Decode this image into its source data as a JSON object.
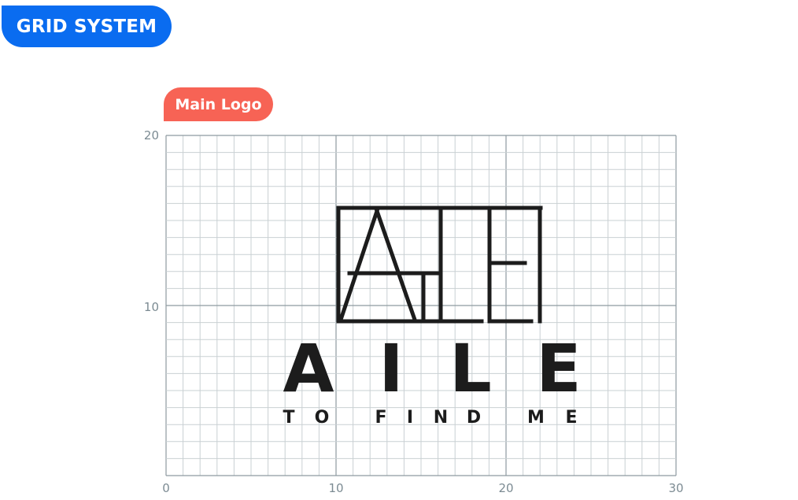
{
  "header": {
    "title": "GRID SYSTEM"
  },
  "section": {
    "label": "Main Logo"
  },
  "grid": {
    "x_ticks": [
      "0",
      "10",
      "20",
      "30"
    ],
    "y_ticks": [
      "20",
      "10"
    ]
  },
  "logo": {
    "wordmark_letters": [
      "A",
      "I",
      "L",
      "E"
    ],
    "tagline_letters": [
      "T",
      "O",
      "F",
      "I",
      "N",
      "D",
      "M",
      "E"
    ]
  },
  "colors": {
    "header_badge": "#0a6cf0",
    "section_badge": "#f76355",
    "grid_minor": "#c9d0d3",
    "grid_major": "#8e9aa0",
    "logo_ink": "#1c1c1c"
  }
}
